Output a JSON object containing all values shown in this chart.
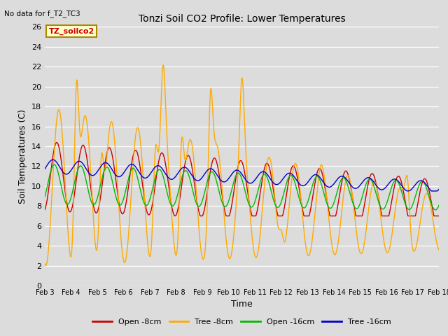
{
  "title": "Tonzi Soil CO2 Profile: Lower Temperatures",
  "subtitle": "No data for f_T2_TC3",
  "xlabel": "Time",
  "ylabel": "Soil Temperatures (C)",
  "xlim": [
    0,
    15
  ],
  "ylim": [
    0,
    26
  ],
  "yticks": [
    0,
    2,
    4,
    6,
    8,
    10,
    12,
    14,
    16,
    18,
    20,
    22,
    24,
    26
  ],
  "xtick_labels": [
    "Feb 3",
    "Feb 4",
    "Feb 5",
    "Feb 6",
    "Feb 7",
    "Feb 8",
    "Feb 9",
    "Feb 10",
    "Feb 11",
    "Feb 12",
    "Feb 13",
    "Feb 14",
    "Feb 15",
    "Feb 16",
    "Feb 17",
    "Feb 18"
  ],
  "legend_label": "TZ_soilco2",
  "bg_color": "#dcdcdc",
  "plot_bg_color": "#dcdcdc",
  "series_colors": {
    "open_8cm": "#cc0000",
    "tree_8cm": "#ffaa00",
    "open_16cm": "#00bb00",
    "tree_16cm": "#0000cc"
  },
  "series_labels": {
    "open_8cm": "Open -8cm",
    "tree_8cm": "Tree -8cm",
    "open_16cm": "Open -16cm",
    "tree_16cm": "Tree -16cm"
  }
}
